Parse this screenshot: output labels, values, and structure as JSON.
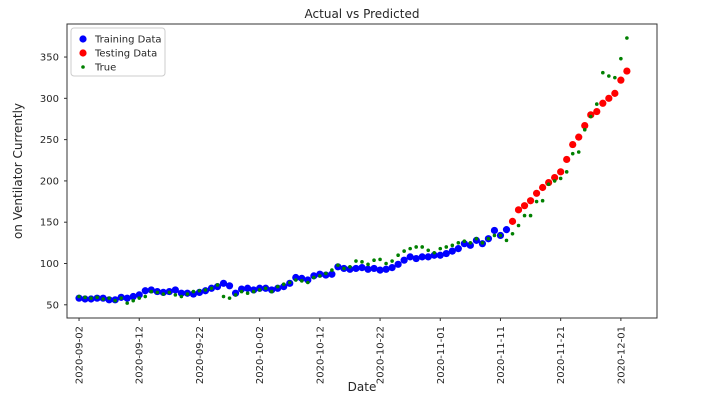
{
  "chart_data": {
    "type": "scatter",
    "title": "Actual vs Predicted",
    "x_label": "Date",
    "y_label": "on Ventilator Currently",
    "xlim": [
      "2020-08-31",
      "2020-12-07"
    ],
    "ylim": [
      34,
      390
    ],
    "xticks": [
      "2020-09-02",
      "2020-09-12",
      "2020-09-22",
      "2020-10-02",
      "2020-10-12",
      "2020-10-22",
      "2020-11-01",
      "2020-11-11",
      "2020-11-21",
      "2020-12-01"
    ],
    "yticks": [
      50,
      100,
      150,
      200,
      250,
      300,
      350
    ],
    "grid": false,
    "legend": "upper left",
    "series": [
      {
        "name": "Training Data",
        "color": "#0000ff",
        "x": [
          "2020-09-02",
          "2020-09-03",
          "2020-09-04",
          "2020-09-05",
          "2020-09-06",
          "2020-09-07",
          "2020-09-08",
          "2020-09-09",
          "2020-09-10",
          "2020-09-11",
          "2020-09-12",
          "2020-09-13",
          "2020-09-14",
          "2020-09-15",
          "2020-09-16",
          "2020-09-17",
          "2020-09-18",
          "2020-09-19",
          "2020-09-20",
          "2020-09-21",
          "2020-09-22",
          "2020-09-23",
          "2020-09-24",
          "2020-09-25",
          "2020-09-26",
          "2020-09-27",
          "2020-09-28",
          "2020-09-29",
          "2020-09-30",
          "2020-10-01",
          "2020-10-02",
          "2020-10-03",
          "2020-10-04",
          "2020-10-05",
          "2020-10-06",
          "2020-10-07",
          "2020-10-08",
          "2020-10-09",
          "2020-10-10",
          "2020-10-11",
          "2020-10-12",
          "2020-10-13",
          "2020-10-14",
          "2020-10-15",
          "2020-10-16",
          "2020-10-17",
          "2020-10-18",
          "2020-10-19",
          "2020-10-20",
          "2020-10-21",
          "2020-10-22",
          "2020-10-23",
          "2020-10-24",
          "2020-10-25",
          "2020-10-26",
          "2020-10-27",
          "2020-10-28",
          "2020-10-29",
          "2020-10-30",
          "2020-10-31",
          "2020-11-01",
          "2020-11-02",
          "2020-11-03",
          "2020-11-04",
          "2020-11-05",
          "2020-11-06",
          "2020-11-07",
          "2020-11-08",
          "2020-11-09",
          "2020-11-10",
          "2020-11-11",
          "2020-11-12"
        ],
        "values": [
          58,
          57,
          57,
          58,
          58,
          56,
          56,
          59,
          58,
          60,
          62,
          67,
          68,
          66,
          65,
          66,
          68,
          64,
          64,
          63,
          65,
          67,
          70,
          72,
          76,
          73,
          64,
          69,
          70,
          68,
          70,
          70,
          68,
          70,
          72,
          76,
          83,
          82,
          80,
          85,
          87,
          86,
          87,
          96,
          94,
          93,
          94,
          95,
          93,
          94,
          92,
          93,
          95,
          99,
          104,
          108,
          106,
          108,
          108,
          110,
          110,
          112,
          115,
          118,
          124,
          122,
          128,
          124,
          130,
          140,
          134,
          141
        ]
      },
      {
        "name": "Testing Data",
        "color": "#ff0000",
        "x": [
          "2020-11-13",
          "2020-11-14",
          "2020-11-15",
          "2020-11-16",
          "2020-11-17",
          "2020-11-18",
          "2020-11-19",
          "2020-11-20",
          "2020-11-21",
          "2020-11-22",
          "2020-11-23",
          "2020-11-24",
          "2020-11-25",
          "2020-11-26",
          "2020-11-27",
          "2020-11-28",
          "2020-11-29",
          "2020-11-30",
          "2020-12-01",
          "2020-12-02"
        ],
        "values": [
          151,
          165,
          170,
          176,
          185,
          192,
          198,
          204,
          211,
          226,
          244,
          253,
          267,
          280,
          284,
          294,
          300,
          306,
          322,
          333
        ]
      },
      {
        "name": "True",
        "color": "#008000",
        "x": [
          "2020-09-02",
          "2020-09-03",
          "2020-09-04",
          "2020-09-05",
          "2020-09-06",
          "2020-09-07",
          "2020-09-08",
          "2020-09-09",
          "2020-09-10",
          "2020-09-11",
          "2020-09-12",
          "2020-09-13",
          "2020-09-14",
          "2020-09-15",
          "2020-09-16",
          "2020-09-17",
          "2020-09-18",
          "2020-09-19",
          "2020-09-20",
          "2020-09-21",
          "2020-09-22",
          "2020-09-23",
          "2020-09-24",
          "2020-09-25",
          "2020-09-26",
          "2020-09-27",
          "2020-09-28",
          "2020-09-29",
          "2020-09-30",
          "2020-10-01",
          "2020-10-02",
          "2020-10-03",
          "2020-10-04",
          "2020-10-05",
          "2020-10-06",
          "2020-10-07",
          "2020-10-08",
          "2020-10-09",
          "2020-10-10",
          "2020-10-11",
          "2020-10-12",
          "2020-10-13",
          "2020-10-14",
          "2020-10-15",
          "2020-10-16",
          "2020-10-17",
          "2020-10-18",
          "2020-10-19",
          "2020-10-20",
          "2020-10-21",
          "2020-10-22",
          "2020-10-23",
          "2020-10-24",
          "2020-10-25",
          "2020-10-26",
          "2020-10-27",
          "2020-10-28",
          "2020-10-29",
          "2020-10-30",
          "2020-10-31",
          "2020-11-01",
          "2020-11-02",
          "2020-11-03",
          "2020-11-04",
          "2020-11-05",
          "2020-11-06",
          "2020-11-07",
          "2020-11-08",
          "2020-11-09",
          "2020-11-10",
          "2020-11-11",
          "2020-11-12",
          "2020-11-13",
          "2020-11-14",
          "2020-11-15",
          "2020-11-16",
          "2020-11-17",
          "2020-11-18",
          "2020-11-19",
          "2020-11-20",
          "2020-11-21",
          "2020-11-22",
          "2020-11-23",
          "2020-11-24",
          "2020-11-25",
          "2020-11-26",
          "2020-11-27",
          "2020-11-28",
          "2020-11-29",
          "2020-11-30",
          "2020-12-01",
          "2020-12-02"
        ],
        "values": [
          60,
          59,
          58,
          59,
          57,
          58,
          55,
          58,
          52,
          55,
          58,
          60,
          66,
          65,
          63,
          65,
          62,
          60,
          63,
          66,
          67,
          68,
          70,
          74,
          60,
          58,
          62,
          66,
          64,
          66,
          68,
          70,
          66,
          72,
          75,
          77,
          80,
          79,
          77,
          83,
          85,
          88,
          92,
          98,
          94,
          96,
          103,
          102,
          99,
          104,
          105,
          100,
          103,
          110,
          115,
          118,
          120,
          120,
          116,
          113,
          118,
          120,
          122,
          125,
          127,
          125,
          130,
          125,
          130,
          134,
          134,
          128,
          136,
          146,
          158,
          158,
          175,
          176,
          196,
          200,
          203,
          211,
          233,
          235,
          262,
          278,
          293,
          331,
          327,
          325,
          348,
          373
        ]
      }
    ]
  }
}
